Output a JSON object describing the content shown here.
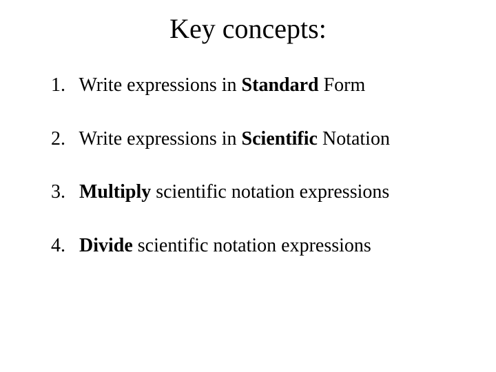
{
  "title": "Key concepts:",
  "title_fontsize": 40,
  "item_fontsize": 28,
  "text_color": "#000000",
  "background_color": "#ffffff",
  "font_family": "Times New Roman",
  "items": [
    {
      "num": "1.",
      "pre": "Write expressions in ",
      "bold": "Standard",
      "post": " Form"
    },
    {
      "num": "2.",
      "pre": "Write expressions in ",
      "bold": "Scientific",
      "post": " Notation"
    },
    {
      "num": "3.",
      "pre": "",
      "bold": "Multiply",
      "post": " scientific notation expressions"
    },
    {
      "num": "4.",
      "pre": "",
      "bold": "Divide",
      "post": " scientific notation expressions"
    }
  ]
}
